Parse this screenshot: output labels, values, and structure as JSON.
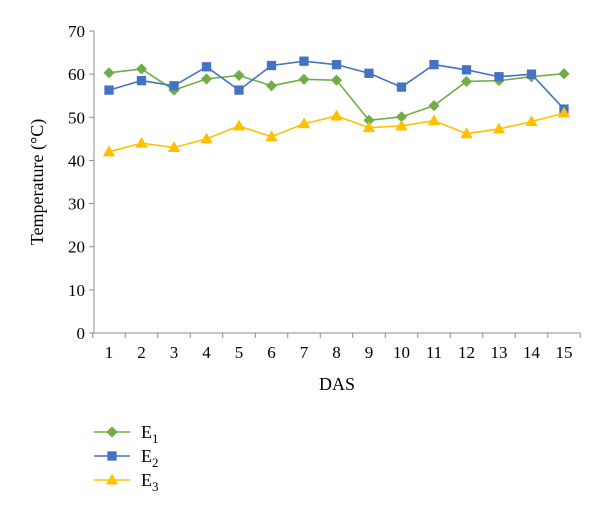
{
  "chart_data": {
    "type": "line",
    "title": "",
    "xlabel": "DAS",
    "ylabel": "Temperature (°C)",
    "categories": [
      "1",
      "2",
      "3",
      "4",
      "5",
      "6",
      "7",
      "8",
      "9",
      "10",
      "11",
      "12",
      "13",
      "14",
      "15"
    ],
    "ylim": [
      0,
      70
    ],
    "yticks": [
      "0",
      "10",
      "20",
      "30",
      "40",
      "50",
      "60",
      "70"
    ],
    "grid": false,
    "legend_position": "bottom-left",
    "series": [
      {
        "name": "E1",
        "name_base": "E",
        "name_sub": "1",
        "color": "#70ad47",
        "marker": "diamond",
        "values": [
          60.3,
          61.2,
          56.3,
          58.9,
          59.7,
          57.3,
          58.8,
          58.6,
          49.3,
          50.1,
          52.7,
          58.3,
          58.5,
          59.4,
          60.1
        ]
      },
      {
        "name": "E2",
        "name_base": "E",
        "name_sub": "2",
        "color": "#4472c4",
        "marker": "square",
        "values": [
          56.3,
          58.5,
          57.3,
          61.7,
          56.3,
          62.0,
          63.0,
          62.2,
          60.2,
          57.0,
          62.2,
          61.0,
          59.4,
          60.0,
          51.9
        ]
      },
      {
        "name": "E3",
        "name_base": "E",
        "name_sub": "3",
        "color": "#ffc000",
        "marker": "triangle",
        "values": [
          42.0,
          44.0,
          43.0,
          45.0,
          48.0,
          45.5,
          48.5,
          50.3,
          47.6,
          48.0,
          49.2,
          46.2,
          47.3,
          49.0,
          51.0
        ]
      }
    ]
  }
}
